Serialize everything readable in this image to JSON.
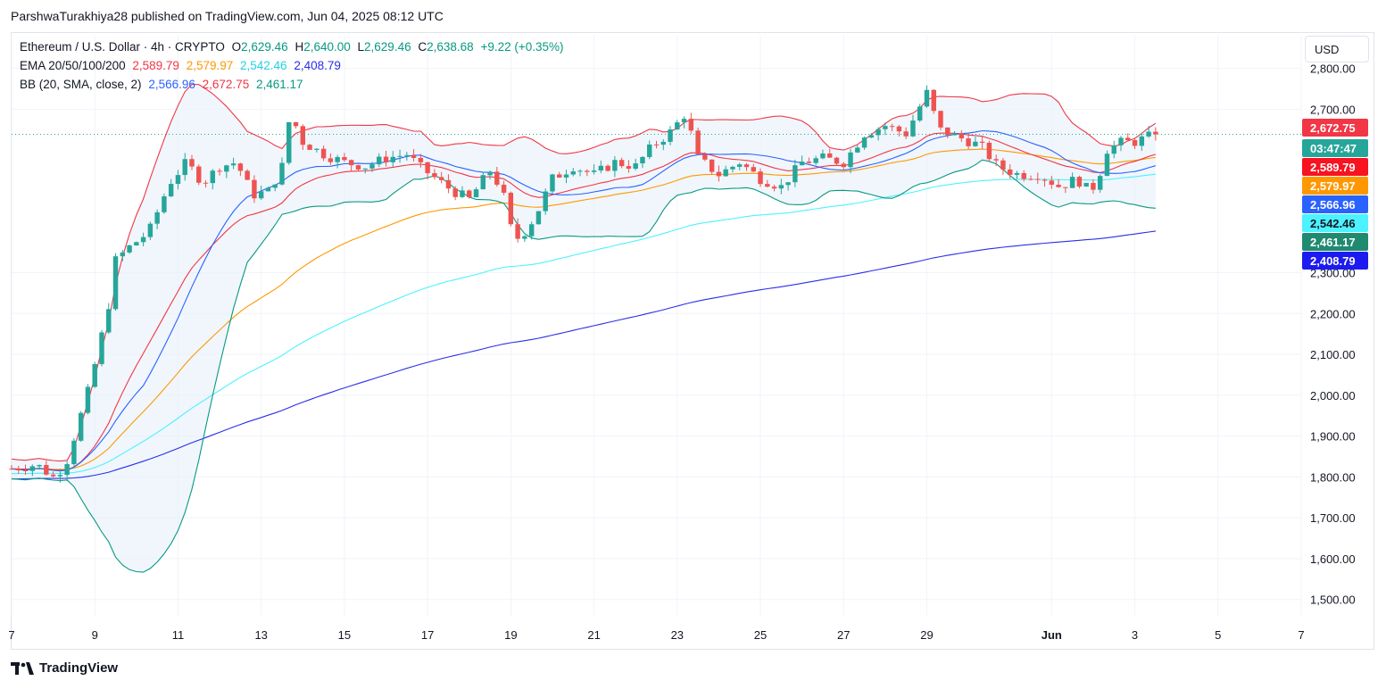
{
  "header": {
    "title": "ParshwaTurakhiya28 published on TradingView.com, Jun 04, 2025 08:12 UTC"
  },
  "legend": {
    "symbol": "Ethereum / U.S. Dollar · 4h · CRYPTO",
    "o_label": "O",
    "o": "2,629.46",
    "h_label": "H",
    "h": "2,640.00",
    "l_label": "L",
    "l": "2,629.46",
    "c_label": "C",
    "c": "2,638.68",
    "change": "+9.22 (+0.35%)",
    "ema_label": "EMA 20/50/100/200",
    "ema20": "2,589.79",
    "ema50": "2,579.97",
    "ema100": "2,542.46",
    "ema200": "2,408.79",
    "bb_label": "BB (20, SMA, close, 2)",
    "bb_basis": "2,566.96",
    "bb_upper": "2,672.75",
    "bb_lower": "2,461.17"
  },
  "currency": "USD",
  "footer": {
    "brand": "TradingView"
  },
  "colors": {
    "up": "#26a69a",
    "down": "#ef5350",
    "ema20": "#f23645",
    "ema50": "#ff9800",
    "ema100": "#4cf2ff",
    "ema200": "#2a2ee8",
    "bb_basis": "#2962ff",
    "bb_upper": "#f23645",
    "bb_lower": "#089981",
    "bb_fill": "#e6f0fa"
  },
  "chart_data": {
    "type": "candlestick",
    "ylim": [
      1460,
      2880
    ],
    "y_ticks": [
      "2,800.00",
      "2,700.00",
      "2,300.00",
      "2,200.00",
      "2,100.00",
      "2,000.00",
      "1,900.00",
      "1,800.00",
      "1,700.00",
      "1,600.00",
      "1,500.00"
    ],
    "y_tick_values": [
      2800,
      2700,
      2300,
      2200,
      2100,
      2000,
      1900,
      1800,
      1700,
      1600,
      1500
    ],
    "x_ticks": [
      "7",
      "9",
      "11",
      "13",
      "15",
      "17",
      "19",
      "21",
      "23",
      "25",
      "27",
      "29",
      "Jun",
      "3",
      "5",
      "7"
    ],
    "x_tick_days": [
      7,
      9,
      11,
      13,
      15,
      17,
      19,
      21,
      23,
      25,
      27,
      29,
      32,
      34,
      36,
      38
    ],
    "x_range_days": [
      7,
      38
    ],
    "last_price": 2638.68,
    "price_tags": [
      {
        "label": "2,672.75",
        "value": 2672.75,
        "color": "#f23645"
      },
      {
        "label": "03:47:47",
        "value": 2638.68,
        "color": "#26a69a"
      },
      {
        "label": "2,589.79",
        "value": 2589.79,
        "color": "#f7131f"
      },
      {
        "label": "2,579.97",
        "value": 2579.97,
        "color": "#ff9800"
      },
      {
        "label": "2,566.96",
        "value": 2566.96,
        "color": "#2962ff"
      },
      {
        "label": "2,542.46",
        "value": 2542.46,
        "color": "#4cf2ff"
      },
      {
        "label": "2,461.17",
        "value": 2461.17,
        "color": "#1f8a70"
      },
      {
        "label": "2,408.79",
        "value": 2408.79,
        "color": "#1c1cf0"
      }
    ],
    "price_anchors": [
      [
        7.0,
        1820
      ],
      [
        7.6,
        1830
      ],
      [
        8.0,
        1800
      ],
      [
        8.3,
        1830
      ],
      [
        8.6,
        1930
      ],
      [
        8.9,
        2030
      ],
      [
        9.1,
        2120
      ],
      [
        9.3,
        2200
      ],
      [
        9.5,
        2330
      ],
      [
        9.8,
        2360
      ],
      [
        10.3,
        2400
      ],
      [
        10.8,
        2520
      ],
      [
        11.2,
        2570
      ],
      [
        11.6,
        2520
      ],
      [
        12.0,
        2560
      ],
      [
        12.4,
        2570
      ],
      [
        12.8,
        2490
      ],
      [
        13.2,
        2500
      ],
      [
        13.5,
        2560
      ],
      [
        13.7,
        2690
      ],
      [
        14.0,
        2620
      ],
      [
        14.5,
        2590
      ],
      [
        15.0,
        2570
      ],
      [
        15.5,
        2560
      ],
      [
        16.0,
        2580
      ],
      [
        16.5,
        2590
      ],
      [
        16.8,
        2560
      ],
      [
        17.2,
        2530
      ],
      [
        17.6,
        2500
      ],
      [
        18.0,
        2480
      ],
      [
        18.5,
        2550
      ],
      [
        18.8,
        2500
      ],
      [
        19.0,
        2410
      ],
      [
        19.2,
        2380
      ],
      [
        19.6,
        2440
      ],
      [
        20.0,
        2530
      ],
      [
        20.5,
        2560
      ],
      [
        21.0,
        2540
      ],
      [
        21.5,
        2570
      ],
      [
        22.0,
        2560
      ],
      [
        22.4,
        2610
      ],
      [
        22.8,
        2640
      ],
      [
        23.2,
        2690
      ],
      [
        23.5,
        2580
      ],
      [
        24.0,
        2540
      ],
      [
        24.5,
        2570
      ],
      [
        25.0,
        2530
      ],
      [
        25.5,
        2510
      ],
      [
        26.0,
        2570
      ],
      [
        26.5,
        2580
      ],
      [
        27.0,
        2570
      ],
      [
        27.5,
        2640
      ],
      [
        28.0,
        2660
      ],
      [
        28.5,
        2640
      ],
      [
        29.0,
        2740
      ],
      [
        29.3,
        2650
      ],
      [
        29.8,
        2630
      ],
      [
        30.3,
        2610
      ],
      [
        30.7,
        2560
      ],
      [
        31.2,
        2540
      ],
      [
        31.7,
        2540
      ],
      [
        32.2,
        2510
      ],
      [
        32.6,
        2530
      ],
      [
        32.9,
        2500
      ],
      [
        33.1,
        2520
      ],
      [
        33.3,
        2600
      ],
      [
        33.7,
        2620
      ],
      [
        34.0,
        2620
      ],
      [
        34.3,
        2632
      ],
      [
        34.6,
        2638.68
      ]
    ]
  }
}
